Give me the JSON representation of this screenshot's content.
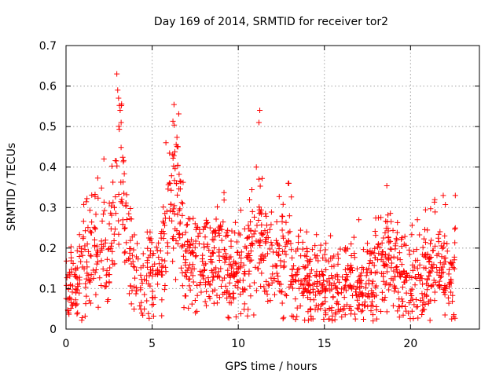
{
  "chart_data": {
    "type": "scatter",
    "title": "Day 169 of 2014, SRMTID for receiver tor2",
    "xlabel": "GPS time / hours",
    "ylabel": "SRMTID / TECUs",
    "xlim": [
      0,
      24
    ],
    "ylim": [
      0,
      0.7
    ],
    "xticks": [
      0,
      5,
      10,
      15,
      20
    ],
    "xtick_labels": [
      "0",
      "5",
      "10",
      "15",
      "20"
    ],
    "yticks": [
      0,
      0.1,
      0.2,
      0.3,
      0.4,
      0.5,
      0.6,
      0.7
    ],
    "ytick_labels": [
      "0",
      "0.1",
      "0.2",
      "0.3",
      "0.4",
      "0.5",
      "0.6",
      "0.7"
    ],
    "grid": true,
    "marker": "+",
    "series": [
      {
        "name": "SRMTID",
        "color": "#ff0000",
        "x_range": [
          0,
          22.6
        ],
        "notable_points": [
          {
            "x": 2.95,
            "y": 0.63
          },
          {
            "x": 3.0,
            "y": 0.59
          },
          {
            "x": 3.05,
            "y": 0.57
          },
          {
            "x": 11.25,
            "y": 0.54
          },
          {
            "x": 11.2,
            "y": 0.51
          },
          {
            "x": 3.2,
            "y": 0.51
          },
          {
            "x": 5.8,
            "y": 0.46
          },
          {
            "x": 6.5,
            "y": 0.45
          },
          {
            "x": 2.2,
            "y": 0.42
          },
          {
            "x": 11.05,
            "y": 0.4
          },
          {
            "x": 11.2,
            "y": 0.37
          },
          {
            "x": 12.9,
            "y": 0.36
          },
          {
            "x": 21.9,
            "y": 0.33
          },
          {
            "x": 22.6,
            "y": 0.33
          },
          {
            "x": 20.4,
            "y": 0.27
          },
          {
            "x": 17.0,
            "y": 0.27
          },
          {
            "x": 10.9,
            "y": 0.035
          },
          {
            "x": 16.8,
            "y": 0.025
          },
          {
            "x": 22.0,
            "y": 0.035
          }
        ]
      }
    ]
  }
}
